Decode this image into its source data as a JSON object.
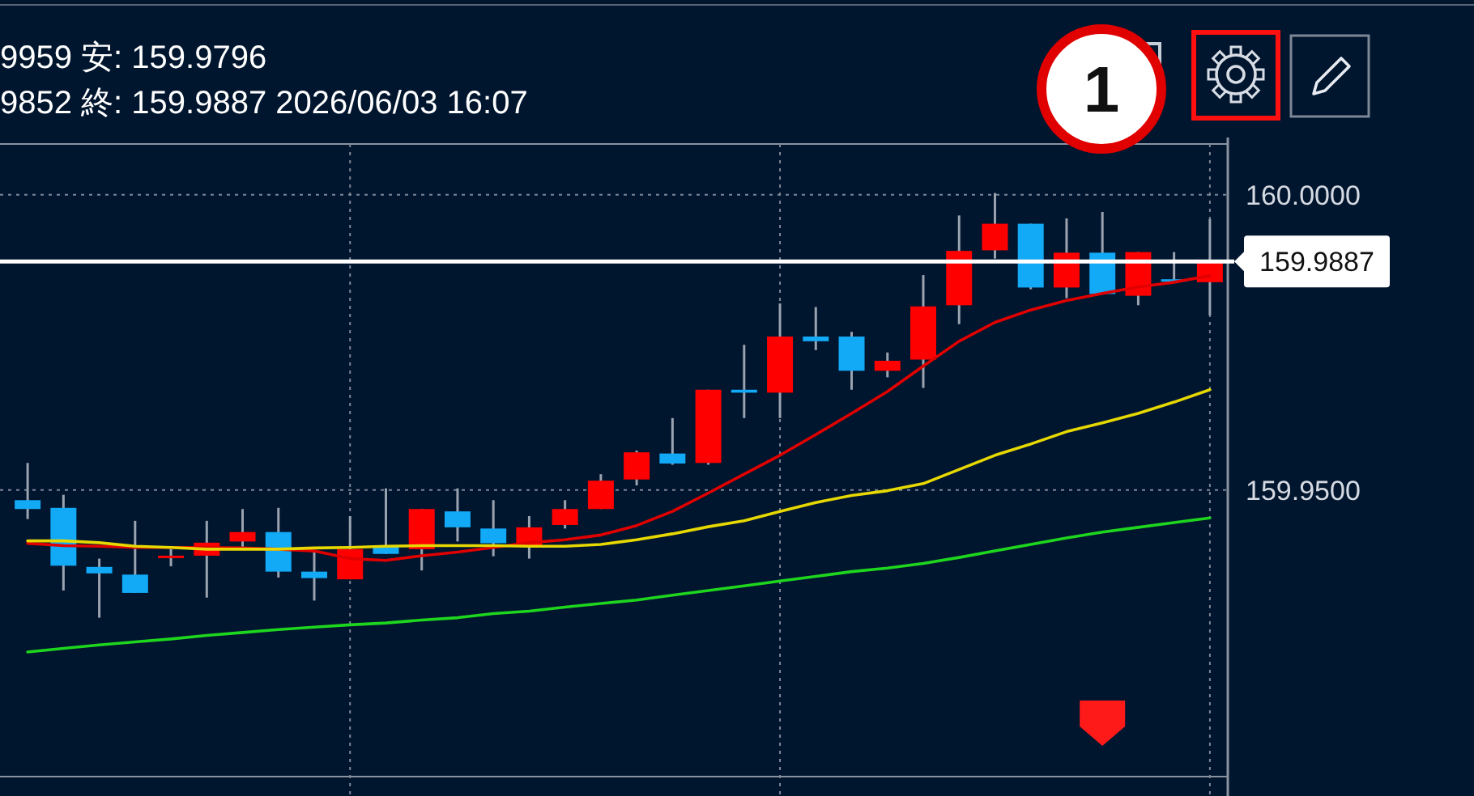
{
  "chart_data": {
    "type": "candlestick",
    "annotations": [
      "9959  安: 159.9796",
      "9852  終: 159.9887  2026/06/03 16:07",
      "1"
    ],
    "categories": [
      null,
      null,
      null,
      null,
      null,
      null,
      null,
      null,
      null,
      null,
      null,
      null,
      null,
      null,
      null,
      null,
      null,
      null,
      null,
      null,
      null,
      null,
      null,
      null,
      null,
      null,
      null,
      null,
      null,
      null,
      null,
      null,
      null,
      null
    ],
    "ohlc": [
      [
        159.9483,
        159.9546,
        159.9451,
        159.9468
      ],
      [
        159.947,
        159.9492,
        159.933,
        159.9372
      ],
      [
        159.937,
        159.9384,
        159.9284,
        159.9359
      ],
      [
        159.9357,
        159.9448,
        159.9326,
        159.9326
      ],
      [
        159.9387,
        159.94,
        159.9371,
        159.9389
      ],
      [
        159.9389,
        159.9448,
        159.9318,
        159.9411
      ],
      [
        159.9413,
        159.9468,
        159.94,
        159.9429
      ],
      [
        159.9429,
        159.947,
        159.9352,
        159.9362
      ],
      [
        159.9362,
        159.9397,
        159.9313,
        159.9351
      ],
      [
        159.9349,
        159.9456,
        159.9349,
        159.94
      ],
      [
        159.9405,
        159.9503,
        159.9392,
        159.9392
      ],
      [
        159.94,
        159.9468,
        159.9364,
        159.9468
      ],
      [
        159.9464,
        159.9503,
        159.9413,
        159.9437
      ],
      [
        159.9435,
        159.9483,
        159.9388,
        159.941
      ],
      [
        159.9406,
        159.9456,
        159.9384,
        159.9437
      ],
      [
        159.9441,
        159.9483,
        159.9435,
        159.9468
      ],
      [
        159.9468,
        159.9527,
        159.9468,
        159.9516
      ],
      [
        159.9518,
        159.9567,
        159.9508,
        159.9564
      ],
      [
        159.9562,
        159.9622,
        159.9543,
        159.9545
      ],
      [
        159.9546,
        159.967,
        159.9543,
        159.967
      ],
      [
        159.967,
        159.9746,
        159.9622,
        159.9665
      ],
      [
        159.9665,
        159.9816,
        159.9622,
        159.976
      ],
      [
        159.976,
        159.981,
        159.9737,
        159.9752
      ],
      [
        159.976,
        159.9768,
        159.967,
        159.9702
      ],
      [
        159.9702,
        159.9733,
        159.9691,
        159.9719
      ],
      [
        159.9721,
        159.9864,
        159.9673,
        159.9811
      ],
      [
        159.9813,
        159.9965,
        159.9781,
        159.9905
      ],
      [
        159.9906,
        160.0003,
        159.9892,
        159.9951
      ],
      [
        159.9951,
        159.9951,
        159.984,
        159.9843
      ],
      [
        159.9843,
        159.996,
        159.9825,
        159.9902
      ],
      [
        159.9902,
        159.9971,
        159.9832,
        159.9832
      ],
      [
        159.9829,
        159.9903,
        159.9813,
        159.9903
      ],
      [
        159.9857,
        159.9903,
        159.9854,
        159.9854
      ],
      [
        159.9852,
        159.9959,
        159.9796,
        159.9887
      ]
    ],
    "colors": [
      "#12a9f6",
      "#12a9f6",
      "#12a9f6",
      "#12a9f6",
      "#ff0000",
      "#ff0000",
      "#ff0000",
      "#12a9f6",
      "#12a9f6",
      "#ff0000",
      "#12a9f6",
      "#ff0000",
      "#12a9f6",
      "#12a9f6",
      "#ff0000",
      "#ff0000",
      "#ff0000",
      "#ff0000",
      "#12a9f6",
      "#ff0000",
      "#12a9f6",
      "#ff0000",
      "#12a9f6",
      "#12a9f6",
      "#ff0000",
      "#ff0000",
      "#ff0000",
      "#ff0000",
      "#12a9f6",
      "#ff0000",
      "#12a9f6",
      "#ff0000",
      "#12a9f6",
      "#ff0000"
    ],
    "series": [
      {
        "type": "line",
        "color": "#e00000",
        "values": [
          159.941,
          159.9406,
          159.9405,
          159.9403,
          159.9403,
          159.9403,
          159.9402,
          159.94,
          159.9397,
          159.9384,
          159.9381,
          159.9389,
          159.9395,
          159.9403,
          159.9411,
          159.9416,
          159.9424,
          159.944,
          159.9464,
          159.9495,
          159.9527,
          159.9559,
          159.9594,
          159.963,
          159.9667,
          159.971,
          159.9752,
          159.9784,
          159.9805,
          159.9821,
          159.9833,
          159.9844,
          159.9852,
          159.9863
        ]
      },
      {
        "type": "line",
        "color": "#e6d800",
        "values": [
          159.9414,
          159.9414,
          159.9411,
          159.9405,
          159.9403,
          159.94,
          159.94,
          159.94,
          159.9402,
          159.9403,
          159.9405,
          159.9406,
          159.9406,
          159.9406,
          159.9405,
          159.9405,
          159.9408,
          159.9416,
          159.9426,
          159.9438,
          159.9448,
          159.9464,
          159.9479,
          159.9491,
          159.9499,
          159.9511,
          159.9535,
          159.9559,
          159.9578,
          159.9599,
          159.9614,
          159.963,
          159.9649,
          159.967
        ]
      },
      {
        "type": "line",
        "color": "#1ed61e",
        "values": [
          159.9226,
          159.9232,
          159.9238,
          159.9243,
          159.9248,
          159.9254,
          159.9259,
          159.9264,
          159.9268,
          159.9272,
          159.9275,
          159.928,
          159.9284,
          159.9291,
          159.9295,
          159.9302,
          159.9308,
          159.9314,
          159.9322,
          159.933,
          159.9338,
          159.9346,
          159.9354,
          159.9362,
          159.9368,
          159.9376,
          159.9386,
          159.9397,
          159.9408,
          159.9419,
          159.9429,
          159.9437,
          159.9445,
          159.9453
        ]
      }
    ],
    "ylim": [
      159.9015,
      160.0086
    ],
    "yticks": [
      {
        "value": 160.0,
        "label": "160.0000"
      },
      {
        "value": 159.95,
        "label": "159.9500"
      }
    ],
    "grid": true,
    "ref_lines": [
      {
        "axis": "y",
        "value": 159.9887,
        "label": "159.9887",
        "color": "#ffffff"
      }
    ]
  }
}
